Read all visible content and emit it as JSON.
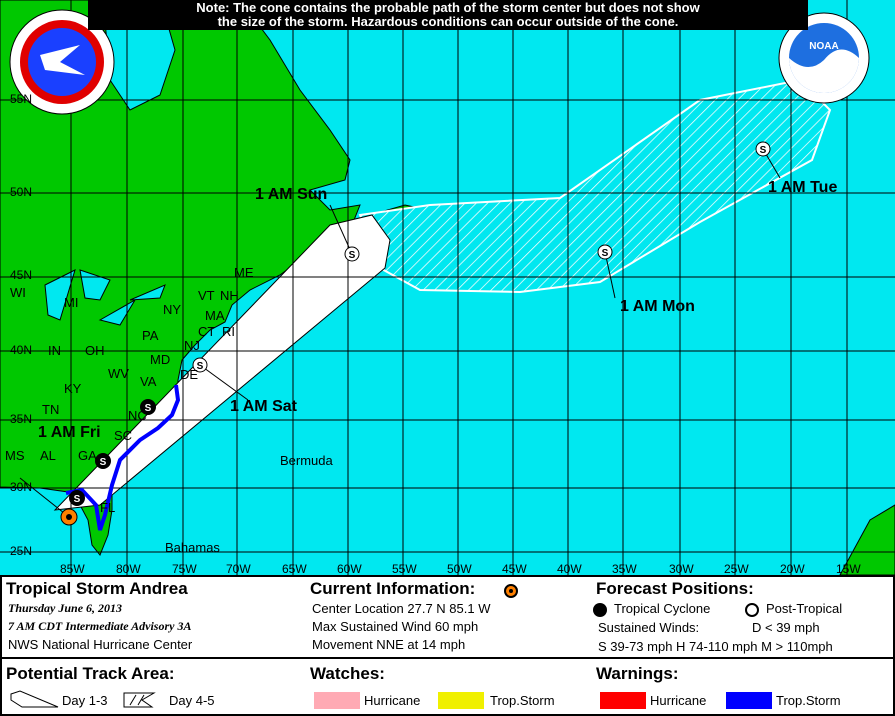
{
  "note": {
    "line1": "Note: The cone contains the probable path of the storm center but does not show",
    "line2": "the size of the storm. Hazardous conditions can occur outside of the cone."
  },
  "logos": {
    "left": "NATIONAL WEATHER SERVICE",
    "right": "NOAA"
  },
  "map": {
    "lat_labels": [
      "55N",
      "50N",
      "45N",
      "40N",
      "35N",
      "30N",
      "25N"
    ],
    "lon_labels": [
      "85W",
      "80W",
      "75W",
      "70W",
      "65W",
      "60W",
      "55W",
      "50W",
      "45W",
      "40W",
      "35W",
      "30W",
      "25W",
      "20W",
      "15W"
    ],
    "state_labels": [
      "WI",
      "MI",
      "NY",
      "ME",
      "VT",
      "NH",
      "PA",
      "IN",
      "OH",
      "MA",
      "CT",
      "RI",
      "WV",
      "VA",
      "MD",
      "DE",
      "NJ",
      "KY",
      "TN",
      "NC",
      "SC",
      "MS",
      "AL",
      "GA",
      "FL"
    ],
    "place_labels": {
      "bermuda": "Bermuda",
      "bahamas": "Bahamas"
    },
    "forecast_labels": [
      "1 AM Fri",
      "1 AM Sat",
      "1 AM Sun",
      "1 AM Mon",
      "1 AM Tue"
    ],
    "marker_letter": "S",
    "colors": {
      "ocean": "#00e8f0",
      "land": "#00c800",
      "cone": "#ffffff",
      "current": "#ff8000",
      "ts_warning": "#0000ff"
    }
  },
  "legend": {
    "storm_name": "Tropical Storm Andrea",
    "date": "Thursday  June 6, 2013",
    "advisory": "7 AM CDT Intermediate Advisory 3A",
    "center": "NWS National Hurricane Center",
    "current_title": "Current Information:",
    "center_location": "Center Location 27.7 N  85.1 W",
    "max_wind": "Max Sustained Wind  60 mph",
    "movement": "Movement NNE at  14 mph",
    "forecast_title": "Forecast Positions:",
    "tropical_cyclone": "Tropical Cyclone",
    "post_tropical": "Post-Tropical",
    "sustained_winds": "Sustained Winds:",
    "d_range": "D  < 39 mph",
    "s_h_m_ranges": "S  39-73 mph  H  74-110 mph  M  > 110mph",
    "track_title": "Potential Track Area:",
    "day13": "Day 1-3",
    "day45": "Day 4-5",
    "watches_title": "Watches:",
    "warnings_title": "Warnings:",
    "watch_hurricane": "Hurricane",
    "watch_ts": "Trop.Storm",
    "warn_hurricane": "Hurricane",
    "warn_ts": "Trop.Storm",
    "colors": {
      "watch_hurricane": "#ffaab4",
      "watch_ts": "#f0f000",
      "warn_hurricane": "#ff0000",
      "warn_ts": "#0000ff"
    }
  }
}
